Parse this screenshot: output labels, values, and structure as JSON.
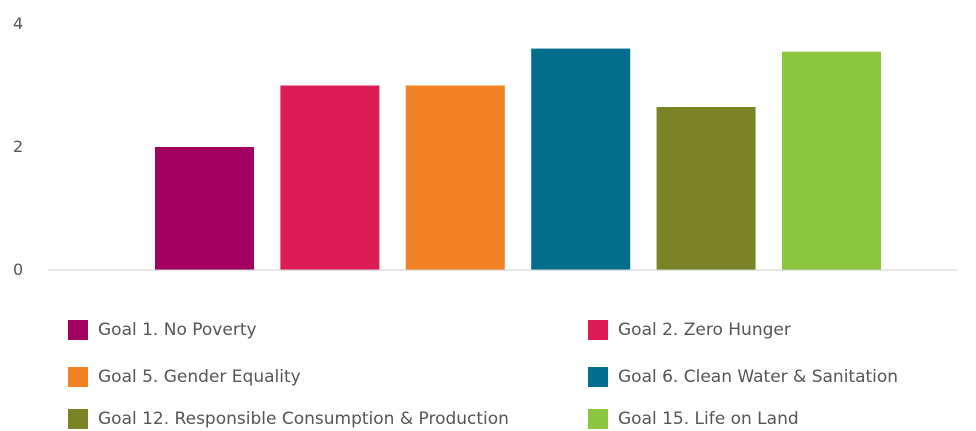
{
  "chart_data": {
    "type": "bar",
    "title": "",
    "xlabel": "",
    "ylabel": "",
    "ylim": [
      0,
      4
    ],
    "yticks": [
      0,
      2,
      4
    ],
    "grid": false,
    "legend_position": "bottom",
    "series": [
      {
        "name": "Goal 1. No Poverty",
        "value": 2.0,
        "color": "#A10060"
      },
      {
        "name": "Goal 2. Zero Hunger",
        "value": 3.0,
        "color": "#DD1C55"
      },
      {
        "name": "Goal 5. Gender Equality",
        "value": 3.0,
        "color": "#F28325"
      },
      {
        "name": "Goal 6. Clean Water & Sanitation",
        "value": 3.6,
        "color": "#006E8C"
      },
      {
        "name": "Goal 12. Responsible Consumption & Production",
        "value": 2.65,
        "color": "#7A8427"
      },
      {
        "name": "Goal 15. Life on Land",
        "value": 3.55,
        "color": "#8CC63F"
      }
    ]
  }
}
